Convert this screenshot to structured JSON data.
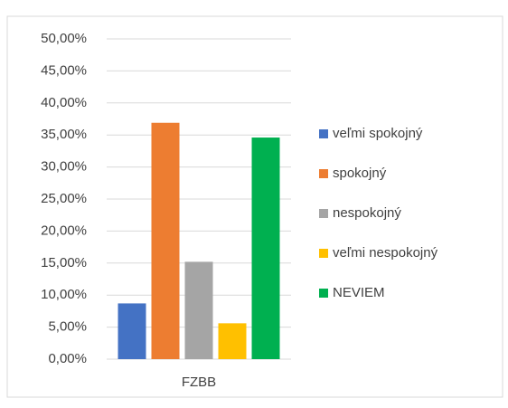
{
  "chart_data": {
    "type": "bar",
    "categories": [
      "FZBB"
    ],
    "series": [
      {
        "name": "veľmi spokojný",
        "color": "#4472c4",
        "values": [
          8.7
        ]
      },
      {
        "name": "spokojný",
        "color": "#ed7d31",
        "values": [
          36.9
        ]
      },
      {
        "name": "nespokojný",
        "color": "#a5a5a5",
        "values": [
          15.2
        ]
      },
      {
        "name": "veľmi nespokojný",
        "color": "#ffc000",
        "values": [
          5.6
        ]
      },
      {
        "name": "NEVIEM",
        "color": "#00b050",
        "values": [
          34.6
        ]
      }
    ],
    "ylim": [
      0,
      50
    ],
    "yticks": [
      {
        "value": 0,
        "label": "0,00%"
      },
      {
        "value": 5,
        "label": "5,00%"
      },
      {
        "value": 10,
        "label": "10,00%"
      },
      {
        "value": 15,
        "label": "15,00%"
      },
      {
        "value": 20,
        "label": "20,00%"
      },
      {
        "value": 25,
        "label": "25,00%"
      },
      {
        "value": 30,
        "label": "30,00%"
      },
      {
        "value": 35,
        "label": "35,00%"
      },
      {
        "value": 40,
        "label": "40,00%"
      },
      {
        "value": 45,
        "label": "45,00%"
      },
      {
        "value": 50,
        "label": "50,00%"
      }
    ],
    "grid": true,
    "legend": "right"
  }
}
